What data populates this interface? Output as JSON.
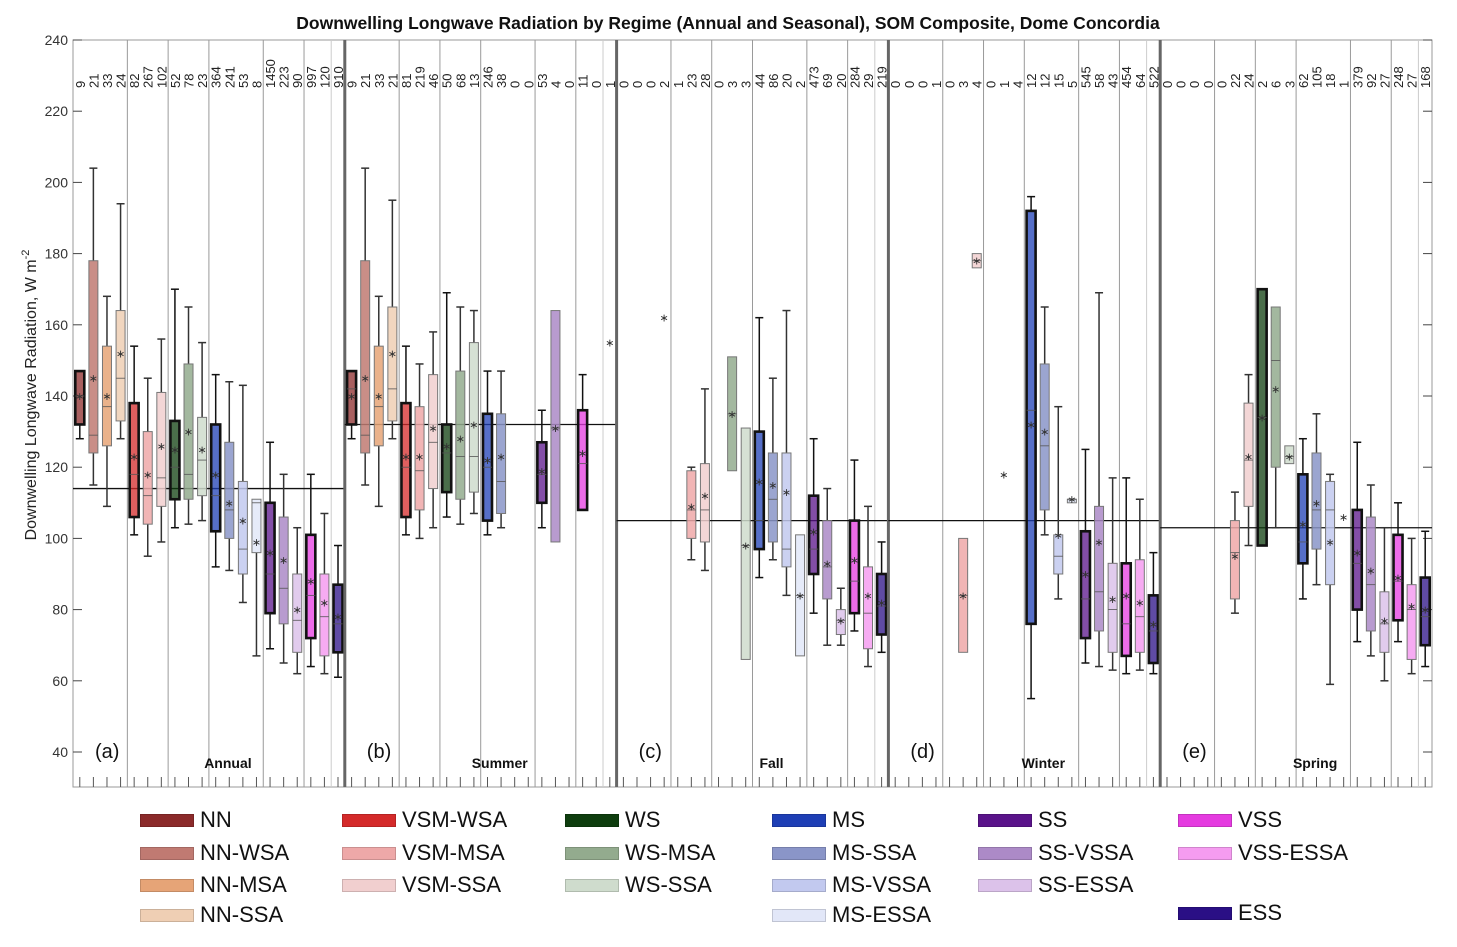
{
  "chart_data": {
    "type": "box",
    "title": "Downwelling Longwave Radiation by Regime (Annual and Seasonal), SOM Composite, Dome Concordia",
    "xlabel": "",
    "ylabel": "Downwelling Longwave Radiation, W m",
    "ylabel_superscript": "-2",
    "ylim": [
      40,
      240
    ],
    "yticks": [
      40,
      60,
      80,
      100,
      120,
      140,
      160,
      180,
      200,
      220,
      240
    ],
    "grid": false,
    "legend_position": "bottom",
    "regimes": [
      "NN",
      "NN-WSA",
      "NN-MSA",
      "NN-SSA",
      "VSM-WSA",
      "VSM-MSA",
      "VSM-SSA",
      "WS",
      "WS-MSA",
      "WS-SSA",
      "MS",
      "MS-SSA",
      "MS-VSSA",
      "MS-ESSA",
      "SS",
      "SS-VSSA",
      "SS-ESSA",
      "VSS",
      "VSS-ESSA",
      "ESS"
    ],
    "regime_colors": [
      "#8b2a2a",
      "#c07a72",
      "#e6a477",
      "#efcfb4",
      "#d42a2a",
      "#eea8a8",
      "#f1cfcf",
      "#0e3d0e",
      "#93ab8e",
      "#cfdccd",
      "#1e3fb5",
      "#8a95c8",
      "#c2c9ef",
      "#e2e7f8",
      "#5a138a",
      "#ac8ac7",
      "#dcc2ea",
      "#e53be0",
      "#f59cf0",
      "#2a0f85"
    ],
    "panels": [
      {
        "label": "(a)",
        "name": "Annual",
        "overall_mean": 114,
        "counts": [
          9,
          21,
          33,
          24,
          82,
          267,
          102,
          52,
          78,
          23,
          364,
          241,
          53,
          8,
          1450,
          223,
          90,
          997,
          120,
          910
        ],
        "boxes": [
          {
            "wlo": 128,
            "q1": 132,
            "med": 140,
            "q3": 147,
            "whi": 147,
            "mean": 140
          },
          {
            "wlo": 115,
            "q1": 124,
            "med": 129,
            "q3": 178,
            "whi": 204,
            "mean": 145
          },
          {
            "wlo": 109,
            "q1": 126,
            "med": 137,
            "q3": 154,
            "whi": 168,
            "mean": 140
          },
          {
            "wlo": 128,
            "q1": 133,
            "med": 145,
            "q3": 164,
            "whi": 194,
            "mean": 152
          },
          {
            "wlo": 101,
            "q1": 106,
            "med": 118,
            "q3": 138,
            "whi": 154,
            "mean": 123
          },
          {
            "wlo": 95,
            "q1": 104,
            "med": 112,
            "q3": 130,
            "whi": 145,
            "mean": 118
          },
          {
            "wlo": 99,
            "q1": 109,
            "med": 117,
            "q3": 141,
            "whi": 156,
            "mean": 126
          },
          {
            "wlo": 103,
            "q1": 111,
            "med": 120,
            "q3": 133,
            "whi": 170,
            "mean": 125
          },
          {
            "wlo": 104,
            "q1": 111,
            "med": 118,
            "q3": 149,
            "whi": 165,
            "mean": 130
          },
          {
            "wlo": 105,
            "q1": 112,
            "med": 122,
            "q3": 134,
            "whi": 155,
            "mean": 125
          },
          {
            "wlo": 92,
            "q1": 102,
            "med": 112,
            "q3": 132,
            "whi": 146,
            "mean": 118
          },
          {
            "wlo": 91,
            "q1": 100,
            "med": 108,
            "q3": 127,
            "whi": 144,
            "mean": 110
          },
          {
            "wlo": 82,
            "q1": 90,
            "med": 97,
            "q3": 116,
            "whi": 143,
            "mean": 105
          },
          {
            "wlo": 67,
            "q1": 96,
            "med": 110,
            "q3": 111,
            "whi": 111,
            "mean": 99
          },
          {
            "wlo": 69,
            "q1": 79,
            "med": 90,
            "q3": 110,
            "whi": 127,
            "mean": 96
          },
          {
            "wlo": 65,
            "q1": 76,
            "med": 86,
            "q3": 106,
            "whi": 118,
            "mean": 94
          },
          {
            "wlo": 62,
            "q1": 68,
            "med": 77,
            "q3": 90,
            "whi": 103,
            "mean": 80
          },
          {
            "wlo": 64,
            "q1": 72,
            "med": 84,
            "q3": 101,
            "whi": 118,
            "mean": 88
          },
          {
            "wlo": 62,
            "q1": 67,
            "med": 78,
            "q3": 90,
            "whi": 107,
            "mean": 82
          },
          {
            "wlo": 61,
            "q1": 68,
            "med": 76,
            "q3": 87,
            "whi": 98,
            "mean": 78
          }
        ]
      },
      {
        "label": "(b)",
        "name": "Summer",
        "overall_mean": 132,
        "counts": [
          9,
          21,
          33,
          21,
          81,
          219,
          46,
          50,
          68,
          13,
          246,
          38,
          0,
          0,
          53,
          4,
          0,
          11,
          0,
          1
        ],
        "boxes": [
          {
            "wlo": 128,
            "q1": 132,
            "med": 142,
            "q3": 147,
            "whi": 147,
            "mean": 140
          },
          {
            "wlo": 115,
            "q1": 124,
            "med": 129,
            "q3": 178,
            "whi": 204,
            "mean": 145
          },
          {
            "wlo": 109,
            "q1": 126,
            "med": 137,
            "q3": 154,
            "whi": 168,
            "mean": 140
          },
          {
            "wlo": 128,
            "q1": 133,
            "med": 142,
            "q3": 165,
            "whi": 195,
            "mean": 152
          },
          {
            "wlo": 101,
            "q1": 106,
            "med": 120,
            "q3": 138,
            "whi": 154,
            "mean": 123
          },
          {
            "wlo": 100,
            "q1": 108,
            "med": 119,
            "q3": 137,
            "whi": 149,
            "mean": 123
          },
          {
            "wlo": 103,
            "q1": 114,
            "med": 127,
            "q3": 146,
            "whi": 158,
            "mean": 131
          },
          {
            "wlo": 106,
            "q1": 113,
            "med": 124,
            "q3": 132,
            "whi": 169,
            "mean": 126
          },
          {
            "wlo": 104,
            "q1": 111,
            "med": 123,
            "q3": 147,
            "whi": 165,
            "mean": 128
          },
          {
            "wlo": 107,
            "q1": 113,
            "med": 123,
            "q3": 155,
            "whi": 164,
            "mean": 132
          },
          {
            "wlo": 101,
            "q1": 105,
            "med": 120,
            "q3": 135,
            "whi": 147,
            "mean": 122
          },
          {
            "wlo": 103,
            "q1": 107,
            "med": 116,
            "q3": 135,
            "whi": 147,
            "mean": 123
          },
          null,
          null,
          {
            "wlo": 103,
            "q1": 110,
            "med": 118,
            "q3": 127,
            "whi": 136,
            "mean": 119
          },
          {
            "wlo": 99,
            "q1": 99,
            "med": 131,
            "q3": 164,
            "whi": 164,
            "mean": 131
          },
          null,
          {
            "wlo": 108,
            "q1": 108,
            "med": 121,
            "q3": 136,
            "whi": 146,
            "mean": 124
          },
          null,
          {
            "wlo": 155,
            "q1": 155,
            "med": 155,
            "q3": 155,
            "whi": 155,
            "mean": 155
          }
        ]
      },
      {
        "label": "(c)",
        "name": "Fall",
        "overall_mean": 105,
        "counts": [
          0,
          0,
          0,
          2,
          1,
          23,
          28,
          0,
          3,
          3,
          44,
          86,
          20,
          2,
          473,
          69,
          20,
          284,
          29,
          219
        ],
        "boxes": [
          null,
          null,
          null,
          {
            "wlo": 162,
            "q1": 162,
            "med": 162,
            "q3": 162,
            "whi": 162,
            "mean": 162
          },
          null,
          {
            "wlo": 94,
            "q1": 100,
            "med": 108,
            "q3": 119,
            "whi": 120,
            "mean": 109
          },
          {
            "wlo": 91,
            "q1": 99,
            "med": 108,
            "q3": 121,
            "whi": 142,
            "mean": 112
          },
          null,
          {
            "wlo": 119,
            "q1": 119,
            "med": 135,
            "q3": 151,
            "whi": 151,
            "mean": 135
          },
          {
            "wlo": 66,
            "q1": 66,
            "med": 98,
            "q3": 131,
            "whi": 131,
            "mean": 98
          },
          {
            "wlo": 89,
            "q1": 97,
            "med": 105,
            "q3": 130,
            "whi": 162,
            "mean": 116
          },
          {
            "wlo": 94,
            "q1": 99,
            "med": 111,
            "q3": 124,
            "whi": 145,
            "mean": 115
          },
          {
            "wlo": 84,
            "q1": 92,
            "med": 97,
            "q3": 124,
            "whi": 164,
            "mean": 113
          },
          {
            "wlo": 67,
            "q1": 67,
            "med": 84,
            "q3": 101,
            "whi": 101,
            "mean": 84
          },
          {
            "wlo": 79,
            "q1": 90,
            "med": 97,
            "q3": 112,
            "whi": 128,
            "mean": 102
          },
          {
            "wlo": 70,
            "q1": 83,
            "med": 92,
            "q3": 105,
            "whi": 114,
            "mean": 93
          },
          {
            "wlo": 70,
            "q1": 73,
            "med": 77,
            "q3": 80,
            "whi": 86,
            "mean": 77
          },
          {
            "wlo": 74,
            "q1": 79,
            "med": 88,
            "q3": 105,
            "whi": 122,
            "mean": 94
          },
          {
            "wlo": 64,
            "q1": 69,
            "med": 79,
            "q3": 92,
            "whi": 109,
            "mean": 84
          },
          {
            "wlo": 68,
            "q1": 73,
            "med": 81,
            "q3": 90,
            "whi": 99,
            "mean": 82
          }
        ]
      },
      {
        "label": "(d)",
        "name": "Winter",
        "overall_mean": 105,
        "counts": [
          0,
          0,
          0,
          1,
          0,
          3,
          4,
          0,
          1,
          4,
          12,
          12,
          15,
          5,
          545,
          58,
          43,
          454,
          64,
          522
        ],
        "boxes": [
          null,
          null,
          null,
          null,
          null,
          {
            "wlo": 68,
            "q1": 68,
            "med": 84,
            "q3": 100,
            "whi": 100,
            "mean": 84
          },
          {
            "wlo": 176,
            "q1": 176,
            "med": 178,
            "q3": 180,
            "whi": 180,
            "mean": 178
          },
          null,
          {
            "wlo": 118,
            "q1": 118,
            "med": 118,
            "q3": 118,
            "whi": 118,
            "mean": 118
          },
          null,
          {
            "wlo": 55,
            "q1": 76,
            "med": 136,
            "q3": 192,
            "whi": 196,
            "mean": 132
          },
          {
            "wlo": 101,
            "q1": 108,
            "med": 126,
            "q3": 149,
            "whi": 165,
            "mean": 130
          },
          {
            "wlo": 83,
            "q1": 90,
            "med": 95,
            "q3": 101,
            "whi": 137,
            "mean": 101
          },
          {
            "wlo": 110,
            "q1": 110,
            "med": 111,
            "q3": 111,
            "whi": 111,
            "mean": 111
          },
          {
            "wlo": 65,
            "q1": 72,
            "med": 83,
            "q3": 102,
            "whi": 125,
            "mean": 90
          },
          {
            "wlo": 64,
            "q1": 74,
            "med": 85,
            "q3": 109,
            "whi": 169,
            "mean": 99
          },
          {
            "wlo": 63,
            "q1": 68,
            "med": 80,
            "q3": 93,
            "whi": 117,
            "mean": 83
          },
          {
            "wlo": 62,
            "q1": 67,
            "med": 76,
            "q3": 93,
            "whi": 117,
            "mean": 84
          },
          {
            "wlo": 63,
            "q1": 68,
            "med": 78,
            "q3": 94,
            "whi": 111,
            "mean": 82
          },
          {
            "wlo": 62,
            "q1": 65,
            "med": 74,
            "q3": 84,
            "whi": 96,
            "mean": 76
          }
        ]
      },
      {
        "label": "(e)",
        "name": "Spring",
        "overall_mean": 103,
        "counts": [
          0,
          0,
          0,
          0,
          0,
          22,
          24,
          2,
          6,
          3,
          62,
          105,
          18,
          1,
          379,
          92,
          27,
          248,
          27,
          168
        ],
        "boxes": [
          null,
          null,
          null,
          null,
          null,
          {
            "wlo": 79,
            "q1": 83,
            "med": 96,
            "q3": 105,
            "whi": 113,
            "mean": 95
          },
          {
            "wlo": 98,
            "q1": 109,
            "med": 122,
            "q3": 138,
            "whi": 146,
            "mean": 123
          },
          {
            "wlo": 98,
            "q1": 98,
            "med": 134,
            "q3": 170,
            "whi": 170,
            "mean": 134
          },
          {
            "wlo": 103,
            "q1": 120,
            "med": 150,
            "q3": 165,
            "whi": 165,
            "mean": 142
          },
          {
            "wlo": 121,
            "q1": 121,
            "med": 123,
            "q3": 126,
            "whi": 126,
            "mean": 123
          },
          {
            "wlo": 83,
            "q1": 93,
            "med": 99,
            "q3": 118,
            "whi": 128,
            "mean": 104
          },
          {
            "wlo": 87,
            "q1": 97,
            "med": 108,
            "q3": 124,
            "whi": 135,
            "mean": 110
          },
          {
            "wlo": 59,
            "q1": 87,
            "med": 108,
            "q3": 116,
            "whi": 118,
            "mean": 99
          },
          {
            "wlo": 106,
            "q1": 106,
            "med": 106,
            "q3": 106,
            "whi": 106,
            "mean": 106
          },
          {
            "wlo": 71,
            "q1": 80,
            "med": 93,
            "q3": 108,
            "whi": 127,
            "mean": 96
          },
          {
            "wlo": 67,
            "q1": 74,
            "med": 87,
            "q3": 106,
            "whi": 115,
            "mean": 91
          },
          {
            "wlo": 60,
            "q1": 68,
            "med": 76,
            "q3": 85,
            "whi": 103,
            "mean": 77
          },
          {
            "wlo": 71,
            "q1": 77,
            "med": 88,
            "q3": 101,
            "whi": 110,
            "mean": 89
          },
          {
            "wlo": 62,
            "q1": 66,
            "med": 80,
            "q3": 87,
            "whi": 100,
            "mean": 81
          },
          {
            "wlo": 64,
            "q1": 70,
            "med": 78,
            "q3": 89,
            "whi": 102,
            "mean": 80
          }
        ]
      }
    ]
  },
  "legend": {
    "columns": [
      [
        "NN",
        "NN-WSA",
        "NN-MSA",
        "NN-SSA"
      ],
      [
        "VSM-WSA",
        "VSM-MSA",
        "VSM-SSA"
      ],
      [
        "WS",
        "WS-MSA",
        "WS-SSA"
      ],
      [
        "MS",
        "MS-SSA",
        "MS-VSSA",
        "MS-ESSA"
      ],
      [
        "SS",
        "SS-VSSA",
        "SS-ESSA"
      ],
      [
        "VSS",
        "VSS-ESSA",
        "",
        "ESS"
      ]
    ]
  }
}
